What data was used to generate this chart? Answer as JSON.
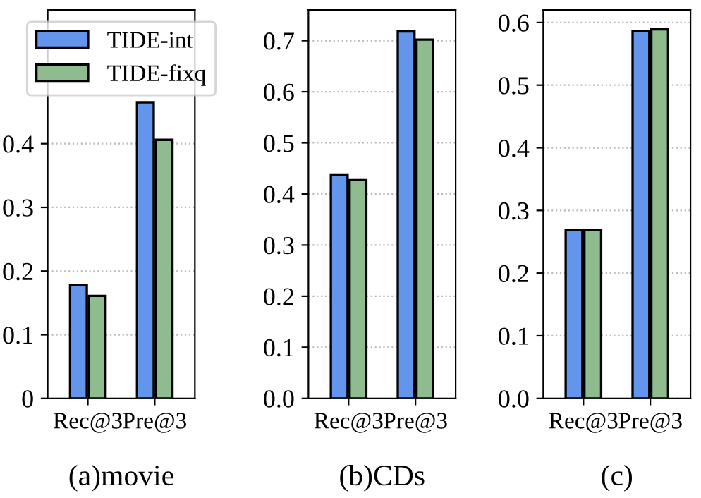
{
  "chart_data": [
    {
      "type": "bar",
      "xlabel": "(a)movie",
      "categories": [
        "Rec@3",
        "Pre@3"
      ],
      "series": [
        {
          "name": "TIDE-int",
          "color": "#6495ed",
          "values": [
            0.178,
            0.465
          ]
        },
        {
          "name": "TIDE-fixq",
          "color": "#8fbc8f",
          "values": [
            0.161,
            0.406
          ]
        }
      ],
      "ylim": [
        0,
        0.61
      ],
      "yticks": [
        0,
        0.1,
        0.2,
        0.3,
        0.4
      ],
      "grid": "y",
      "legend": "top"
    },
    {
      "type": "bar",
      "xlabel": "(b)CDs",
      "categories": [
        "Rec@3",
        "Pre@3"
      ],
      "series": [
        {
          "color": "#6495ed",
          "values": [
            0.438,
            0.718
          ]
        },
        {
          "color": "#8fbc8f",
          "values": [
            0.427,
            0.702
          ]
        }
      ],
      "ylim": [
        0,
        0.76
      ],
      "yticks": [
        {
          "value": 0,
          "label": "0.0"
        },
        0.1,
        0.2,
        0.3,
        0.4,
        0.5,
        0.6,
        0.7
      ],
      "grid": "y"
    },
    {
      "type": "bar",
      "xlabel": "(c)",
      "categories": [
        "Rec@3",
        "Pre@3"
      ],
      "series": [
        {
          "color": "#6495ed",
          "values": [
            0.269,
            0.586
          ]
        },
        {
          "color": "#8fbc8f",
          "values": [
            0.269,
            0.589
          ]
        }
      ],
      "ylim": [
        0,
        0.62
      ],
      "yticks": [
        {
          "value": 0,
          "label": "0.0"
        },
        0.1,
        0.2,
        0.3,
        0.4,
        0.5,
        0.6
      ],
      "grid": "y"
    }
  ]
}
